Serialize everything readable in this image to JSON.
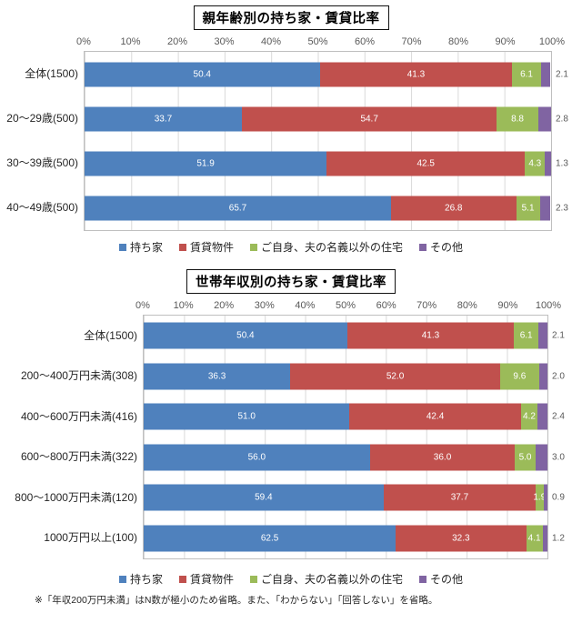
{
  "note": "※「年収200万円未満」はN数が極小のため省略。また、「わからない」「回答しない」を省略。",
  "palette": {
    "owned": "#4F81BD",
    "rental": "#C0504D",
    "other_house": "#9BBB59",
    "other": "#8064A2",
    "gridline": "#D9D9D9",
    "plot_border": "#BFBFBF",
    "axis_text": "#595959"
  },
  "chart_data": [
    {
      "type": "bar",
      "orientation": "horizontal-stacked",
      "title": "親年齢別の持ち家・賃貸比率",
      "x_ticks": [
        "0%",
        "10%",
        "20%",
        "30%",
        "40%",
        "50%",
        "60%",
        "70%",
        "80%",
        "90%",
        "100%"
      ],
      "xlim": [
        0,
        100
      ],
      "grid": true,
      "legend_position": "bottom",
      "categories": [
        "全体(1500)",
        "20〜29歳(500)",
        "30〜39歳(500)",
        "40〜49歳(500)"
      ],
      "series": [
        {
          "name": "持ち家",
          "color": "#4F81BD",
          "values": [
            50.4,
            33.7,
            51.9,
            65.7
          ]
        },
        {
          "name": "賃貸物件",
          "color": "#C0504D",
          "values": [
            41.3,
            54.7,
            42.5,
            26.8
          ]
        },
        {
          "name": "ご自身、夫の名義以外の住宅",
          "color": "#9BBB59",
          "values": [
            6.1,
            8.8,
            4.3,
            5.1
          ]
        },
        {
          "name": "その他",
          "color": "#8064A2",
          "values": [
            2.1,
            2.8,
            1.3,
            2.3
          ]
        }
      ]
    },
    {
      "type": "bar",
      "orientation": "horizontal-stacked",
      "title": "世帯年収別の持ち家・賃貸比率",
      "x_ticks": [
        "0%",
        "10%",
        "20%",
        "30%",
        "40%",
        "50%",
        "60%",
        "70%",
        "80%",
        "90%",
        "100%"
      ],
      "xlim": [
        0,
        100
      ],
      "grid": true,
      "legend_position": "bottom",
      "categories": [
        "全体(1500)",
        "200〜400万円未満(308)",
        "400〜600万円未満(416)",
        "600〜800万円未満(322)",
        "800〜1000万円未満(120)",
        "1000万円以上(100)"
      ],
      "series": [
        {
          "name": "持ち家",
          "color": "#4F81BD",
          "values": [
            50.4,
            36.3,
            51.0,
            56.0,
            59.4,
            62.5
          ]
        },
        {
          "name": "賃貸物件",
          "color": "#C0504D",
          "values": [
            41.3,
            52.0,
            42.4,
            36.0,
            37.7,
            32.3
          ]
        },
        {
          "name": "ご自身、夫の名義以外の住宅",
          "color": "#9BBB59",
          "values": [
            6.1,
            9.6,
            4.2,
            5.0,
            1.9,
            4.1
          ]
        },
        {
          "name": "その他",
          "color": "#8064A2",
          "values": [
            2.1,
            2.0,
            2.4,
            3.0,
            0.9,
            1.2
          ]
        }
      ]
    }
  ]
}
